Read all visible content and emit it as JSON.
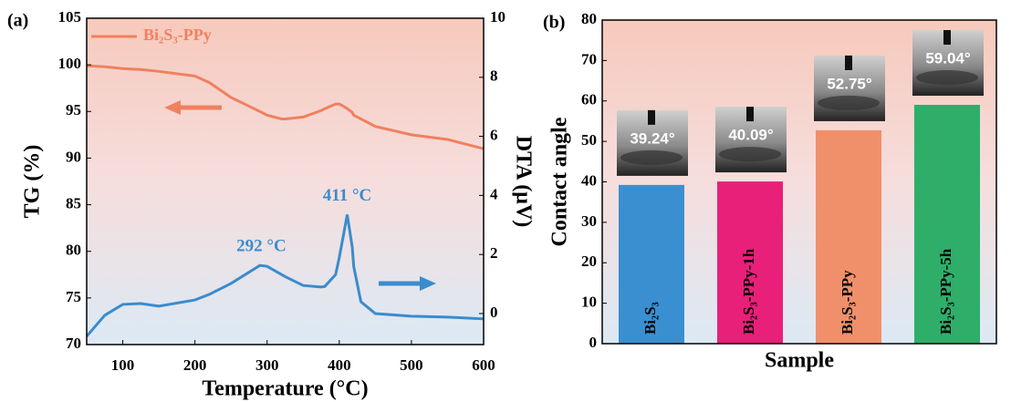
{
  "chart_data": [
    {
      "type": "line",
      "panel_label": "(a)",
      "xlabel": "Temperature (°C)",
      "ylabel": "TG (%)",
      "y2label": "DTA (μV)",
      "x": [
        50,
        75,
        100,
        125,
        150,
        200,
        220,
        250,
        290,
        300,
        320,
        325,
        350,
        375,
        380,
        395,
        400,
        405,
        411,
        418,
        420,
        430,
        450,
        500,
        550,
        600
      ],
      "series": [
        {
          "name": "Bi₂S₃-PPy",
          "color": "#f08060",
          "values": [
            99.9,
            99.8,
            99.6,
            99.5,
            99.3,
            98.8,
            98.1,
            96.5,
            95.0,
            94.6,
            94.2,
            94.2,
            94.4,
            95.1,
            95.3,
            95.8,
            95.8,
            95.6,
            95.3,
            94.9,
            94.6,
            94.2,
            93.4,
            92.5,
            92.0,
            91.0
          ]
        },
        {
          "color": "#3a8ccc",
          "axis": "y2",
          "values": [
            -0.77,
            -0.06,
            0.31,
            0.34,
            0.25,
            0.46,
            0.65,
            1.02,
            1.63,
            1.6,
            1.32,
            1.25,
            0.95,
            0.9,
            0.92,
            1.32,
            1.9,
            2.55,
            3.35,
            2.25,
            1.6,
            0.4,
            0.0,
            -0.09,
            -0.12,
            -0.18
          ]
        }
      ],
      "xlim": [
        50,
        600
      ],
      "xticks": [
        100,
        200,
        300,
        400,
        500,
        600
      ],
      "ylim": [
        70,
        105
      ],
      "yticks": [
        70,
        75,
        80,
        85,
        90,
        95,
        100,
        105
      ],
      "y2lim": [
        -1.05,
        10
      ],
      "y2ticks": [
        0,
        2,
        4,
        6,
        8,
        10
      ],
      "annotations": [
        {
          "text": "292 °C",
          "x": 292,
          "y": 1.63
        },
        {
          "text": "411 °C",
          "x": 411,
          "y": 3.35
        }
      ]
    },
    {
      "type": "bar",
      "panel_label": "(b)",
      "xlabel": "Sample",
      "ylabel": "Contact angle",
      "categories": [
        "Bi₂S₃",
        "Bi₂S₃-PPy-1h",
        "Bi₂S₃-PPy",
        "Bi₂S₃-PPy-5h"
      ],
      "values": [
        39.24,
        40.09,
        52.75,
        59.04
      ],
      "value_labels": [
        "39.24°",
        "40.09°",
        "52.75°",
        "59.04°"
      ],
      "colors": [
        "#3a8fd0",
        "#e8207a",
        "#f0906a",
        "#2fae6a"
      ],
      "ylim": [
        0,
        80
      ],
      "yticks": [
        0,
        10,
        20,
        30,
        40,
        50,
        60,
        70,
        80
      ]
    }
  ]
}
